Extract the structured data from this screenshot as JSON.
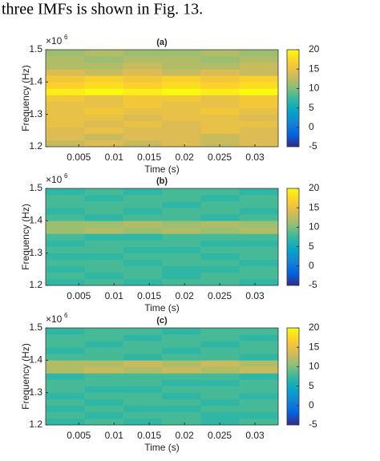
{
  "text_above": "three IMFs is shown in Fig. 13.",
  "chart_data": [
    {
      "type": "heatmap",
      "title": "(a)",
      "x_label": "Time (s)",
      "y_label": "Frequency (Hz)",
      "y_scale_label": {
        "base": "×10",
        "exponent": "6"
      },
      "xlim": [
        0.0003,
        0.0333
      ],
      "xticks": [
        0.005,
        0.01,
        0.015,
        0.02,
        0.025,
        0.03
      ],
      "ylim": [
        1.2,
        1.5
      ],
      "yticks": [
        1.2,
        1.3,
        1.4,
        1.5
      ],
      "xbins": [
        0.0003,
        0.0058,
        0.0113,
        0.0168,
        0.0223,
        0.0278,
        0.0333
      ],
      "ybins": [
        1.2,
        1.22,
        1.24,
        1.26,
        1.28,
        1.3,
        1.32,
        1.34,
        1.36,
        1.38,
        1.4,
        1.42,
        1.44,
        1.46,
        1.48,
        1.5
      ],
      "z": [
        [
          13,
          14,
          13,
          14,
          13,
          14
        ],
        [
          14,
          13,
          14,
          14,
          13,
          14
        ],
        [
          14,
          15,
          14,
          14,
          15,
          14
        ],
        [
          15,
          14,
          15,
          14,
          15,
          15
        ],
        [
          15,
          15,
          14,
          15,
          15,
          14
        ],
        [
          15,
          16,
          15,
          15,
          16,
          15
        ],
        [
          15,
          15,
          16,
          15,
          15,
          16
        ],
        [
          16,
          15,
          16,
          16,
          15,
          16
        ],
        [
          19,
          20,
          19,
          20,
          19,
          20
        ],
        [
          17,
          18,
          17,
          18,
          17,
          18
        ],
        [
          16,
          17,
          16,
          17,
          16,
          17
        ],
        [
          14,
          13,
          14,
          13,
          14,
          13
        ],
        [
          12,
          12,
          13,
          12,
          12,
          13
        ],
        [
          12,
          11,
          12,
          12,
          11,
          12
        ],
        [
          11,
          12,
          11,
          11,
          12,
          11
        ]
      ],
      "clim": [
        -5,
        20
      ],
      "cticks": [
        -5,
        0,
        5,
        10,
        15,
        20
      ],
      "colormap": [
        "#352a87",
        "#0363e1",
        "#1485d4",
        "#06a7c6",
        "#38b99e",
        "#92bf73",
        "#d9ba56",
        "#fcce2e",
        "#f9fb0e"
      ]
    },
    {
      "type": "heatmap",
      "title": "(b)",
      "x_label": "Time (s)",
      "y_label": "Frequency (Hz)",
      "y_scale_label": {
        "base": "×10",
        "exponent": "6"
      },
      "xlim": [
        0.0003,
        0.0333
      ],
      "xticks": [
        0.005,
        0.01,
        0.015,
        0.02,
        0.025,
        0.03
      ],
      "ylim": [
        1.2,
        1.5
      ],
      "yticks": [
        1.2,
        1.3,
        1.4,
        1.5
      ],
      "xbins": [
        0.0003,
        0.0058,
        0.0113,
        0.0168,
        0.0223,
        0.0278,
        0.0333
      ],
      "ybins": [
        1.2,
        1.22,
        1.24,
        1.26,
        1.28,
        1.3,
        1.32,
        1.34,
        1.36,
        1.38,
        1.4,
        1.42,
        1.44,
        1.46,
        1.48,
        1.5
      ],
      "z": [
        [
          7,
          8,
          7,
          8,
          8,
          7
        ],
        [
          8,
          7,
          8,
          7,
          8,
          8
        ],
        [
          7,
          8,
          8,
          7,
          7,
          8
        ],
        [
          8,
          8,
          7,
          8,
          8,
          7
        ],
        [
          7,
          7,
          8,
          8,
          7,
          8
        ],
        [
          8,
          8,
          7,
          7,
          8,
          8
        ],
        [
          7,
          8,
          8,
          8,
          7,
          7
        ],
        [
          8,
          7,
          7,
          8,
          8,
          8
        ],
        [
          11,
          12,
          11,
          12,
          11,
          12
        ],
        [
          11,
          11,
          12,
          11,
          12,
          11
        ],
        [
          8,
          7,
          8,
          8,
          7,
          8
        ],
        [
          7,
          8,
          7,
          8,
          8,
          7
        ],
        [
          8,
          8,
          8,
          7,
          8,
          8
        ],
        [
          8,
          7,
          8,
          8,
          7,
          8
        ],
        [
          7,
          8,
          7,
          8,
          8,
          7
        ]
      ],
      "clim": [
        -5,
        20
      ],
      "cticks": [
        -5,
        0,
        5,
        10,
        15,
        20
      ],
      "colormap": [
        "#352a87",
        "#0363e1",
        "#1485d4",
        "#06a7c6",
        "#38b99e",
        "#92bf73",
        "#d9ba56",
        "#fcce2e",
        "#f9fb0e"
      ]
    },
    {
      "type": "heatmap",
      "title": "(c)",
      "x_label": "Time (s)",
      "y_label": "Frequency (Hz)",
      "y_scale_label": {
        "base": "×10",
        "exponent": "6"
      },
      "xlim": [
        0.0003,
        0.0333
      ],
      "xticks": [
        0.005,
        0.01,
        0.015,
        0.02,
        0.025,
        0.03
      ],
      "ylim": [
        1.2,
        1.5
      ],
      "yticks": [
        1.2,
        1.3,
        1.4,
        1.5
      ],
      "xbins": [
        0.0003,
        0.0058,
        0.0113,
        0.0168,
        0.0223,
        0.0278,
        0.0333
      ],
      "ybins": [
        1.2,
        1.22,
        1.24,
        1.26,
        1.28,
        1.3,
        1.32,
        1.34,
        1.36,
        1.38,
        1.4,
        1.42,
        1.44,
        1.46,
        1.48,
        1.5
      ],
      "z": [
        [
          7,
          8,
          7,
          8,
          7,
          8
        ],
        [
          8,
          7,
          8,
          8,
          7,
          7
        ],
        [
          7,
          8,
          7,
          7,
          8,
          8
        ],
        [
          8,
          7,
          8,
          8,
          7,
          8
        ],
        [
          7,
          8,
          8,
          7,
          8,
          7
        ],
        [
          8,
          7,
          7,
          8,
          8,
          8
        ],
        [
          8,
          8,
          8,
          7,
          7,
          8
        ],
        [
          7,
          8,
          8,
          8,
          8,
          7
        ],
        [
          12,
          13,
          12,
          13,
          12,
          13
        ],
        [
          12,
          12,
          13,
          12,
          13,
          12
        ],
        [
          8,
          8,
          7,
          8,
          8,
          7
        ],
        [
          7,
          8,
          8,
          7,
          8,
          8
        ],
        [
          8,
          7,
          8,
          8,
          7,
          8
        ],
        [
          8,
          8,
          7,
          8,
          8,
          7
        ],
        [
          7,
          8,
          8,
          7,
          8,
          8
        ]
      ],
      "clim": [
        -5,
        20
      ],
      "cticks": [
        -5,
        0,
        5,
        10,
        15,
        20
      ],
      "colormap": [
        "#352a87",
        "#0363e1",
        "#1485d4",
        "#06a7c6",
        "#38b99e",
        "#92bf73",
        "#d9ba56",
        "#fcce2e",
        "#f9fb0e"
      ]
    }
  ]
}
